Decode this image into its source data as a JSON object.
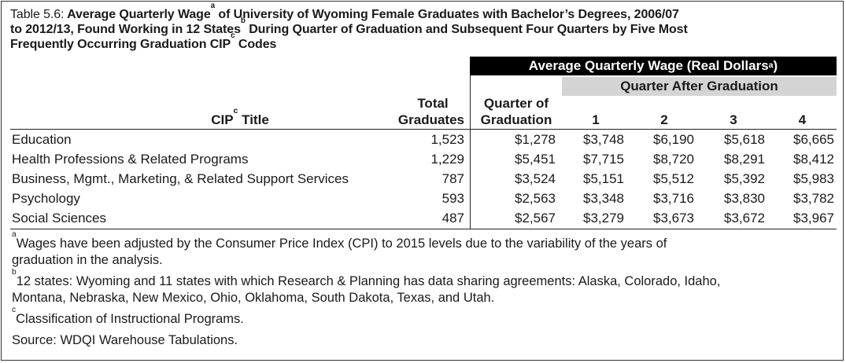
{
  "title": {
    "prefix": "Table 5.6:",
    "line1a": "Average Quarterly Wage",
    "line1b": "of University of Wyoming Female Graduates with Bachelor’s Degrees, 2006/07",
    "line2a": "to 2012/13, Found Working in 12 States",
    "line2b": "During Quarter of Graduation and Subsequent Four Quarters by Five Most",
    "line3a": "Frequently Occurring Graduation CIP",
    "line3b": "Codes",
    "sup_a": "a",
    "sup_b": "b",
    "sup_c": "c"
  },
  "header": {
    "band_main": "Average Quarterly Wage (Real Dollars",
    "band_main_sup": "a",
    "band_main_close": ")",
    "band_sub": "Quarter After Graduation",
    "cip_title_a": "CIP",
    "cip_title_sup": "c",
    "cip_title_b": " Title",
    "total_line1": "Total",
    "total_line2": "Graduates",
    "qog_line1": "Quarter of",
    "qog_line2": "Graduation",
    "q1": "1",
    "q2": "2",
    "q3": "3",
    "q4": "4"
  },
  "rows": [
    {
      "title": "Education",
      "total": "1,523",
      "q0": "$1,278",
      "q1": "$3,748",
      "q2": "$6,190",
      "q3": "$5,618",
      "q4": "$6,665"
    },
    {
      "title": "Health Professions & Related Programs",
      "total": "1,229",
      "q0": "$5,451",
      "q1": "$7,715",
      "q2": "$8,720",
      "q3": "$8,291",
      "q4": "$8,412"
    },
    {
      "title": "Business, Mgmt., Marketing, & Related Support Services",
      "total": "787",
      "q0": "$3,524",
      "q1": "$5,151",
      "q2": "$5,512",
      "q3": "$5,392",
      "q4": "$5,983"
    },
    {
      "title": "Psychology",
      "total": "593",
      "q0": "$2,563",
      "q1": "$3,348",
      "q2": "$3,716",
      "q3": "$3,830",
      "q4": "$3,782"
    },
    {
      "title": "Social Sciences",
      "total": "487",
      "q0": "$2,567",
      "q1": "$3,279",
      "q2": "$3,673",
      "q3": "$3,672",
      "q4": "$3,967"
    }
  ],
  "notes": {
    "a_mark": "a",
    "a_text_line1": "Wages have been adjusted by the Consumer Price Index (CPI) to 2015 levels due to the variability of the years of",
    "a_text_line2": "graduation in the analysis.",
    "b_mark": "b",
    "b_text_line1": "12 states: Wyoming and 11 states with which Research & Planning has data sharing agreements: Alaska, Colorado, Idaho,",
    "b_text_line2": "Montana, Nebraska, New Mexico, Ohio, Oklahoma, South Dakota, Texas, and Utah.",
    "c_mark": "c",
    "c_text": "Classification of Instructional Programs.",
    "source": "Source: WDQI Warehouse Tabulations."
  }
}
